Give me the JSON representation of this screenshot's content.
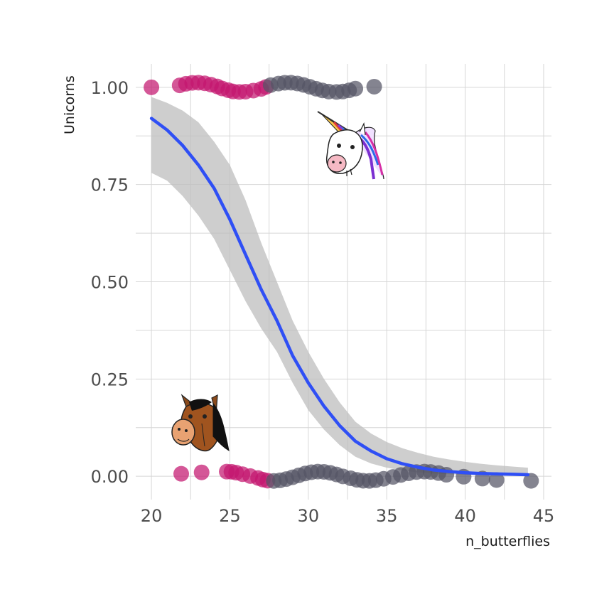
{
  "chart_data": {
    "type": "scatter",
    "title": "",
    "xlabel": "n_butterflies",
    "ylabel": "Unicorns",
    "xlim": [
      19,
      45.5
    ],
    "ylim": [
      -0.06,
      1.06
    ],
    "x_ticks": [
      20,
      25,
      30,
      35,
      40,
      45
    ],
    "x_tick_labels": [
      "20",
      "25",
      "30",
      "35",
      "40",
      "45"
    ],
    "y_ticks": [
      0,
      0.25,
      0.5,
      0.75,
      1
    ],
    "y_tick_labels": [
      "0.00",
      "0.25",
      "0.50",
      "0.75",
      "1.00"
    ],
    "grid": true,
    "legend": "none",
    "colors": {
      "under_27_5": "#c4166f",
      "over_27_5": "#545465",
      "fit_line": "#2f4ff5",
      "confidence_band": "#bdbdbd",
      "grid": "#d6d6d6"
    },
    "series": [
      {
        "values": [
          {
            "x": 20.0,
            "y": 1
          },
          {
            "x": 21.8,
            "y": 1
          },
          {
            "x": 22.2,
            "y": 1
          },
          {
            "x": 22.6,
            "y": 1
          },
          {
            "x": 23.0,
            "y": 1
          },
          {
            "x": 23.4,
            "y": 1
          },
          {
            "x": 23.8,
            "y": 1
          },
          {
            "x": 24.2,
            "y": 1
          },
          {
            "x": 24.5,
            "y": 1
          },
          {
            "x": 24.9,
            "y": 1
          },
          {
            "x": 25.2,
            "y": 1
          },
          {
            "x": 25.6,
            "y": 1
          },
          {
            "x": 26.0,
            "y": 1
          },
          {
            "x": 26.5,
            "y": 1
          },
          {
            "x": 27.0,
            "y": 1
          },
          {
            "x": 27.3,
            "y": 1
          },
          {
            "x": 27.6,
            "y": 1
          },
          {
            "x": 28.1,
            "y": 1
          },
          {
            "x": 28.5,
            "y": 1
          },
          {
            "x": 28.9,
            "y": 1
          },
          {
            "x": 29.3,
            "y": 1
          },
          {
            "x": 29.7,
            "y": 1
          },
          {
            "x": 30.1,
            "y": 1
          },
          {
            "x": 30.5,
            "y": 1
          },
          {
            "x": 30.9,
            "y": 1
          },
          {
            "x": 31.3,
            "y": 1
          },
          {
            "x": 31.8,
            "y": 1
          },
          {
            "x": 32.2,
            "y": 1
          },
          {
            "x": 32.6,
            "y": 1
          },
          {
            "x": 33.0,
            "y": 1
          },
          {
            "x": 34.2,
            "y": 1
          },
          {
            "x": 21.9,
            "y": 0
          },
          {
            "x": 23.2,
            "y": 0
          },
          {
            "x": 24.8,
            "y": 0
          },
          {
            "x": 25.1,
            "y": 0
          },
          {
            "x": 25.4,
            "y": 0
          },
          {
            "x": 25.8,
            "y": 0
          },
          {
            "x": 26.3,
            "y": 0
          },
          {
            "x": 26.8,
            "y": 0
          },
          {
            "x": 27.1,
            "y": 0
          },
          {
            "x": 27.4,
            "y": 0
          },
          {
            "x": 27.8,
            "y": 0
          },
          {
            "x": 28.2,
            "y": 0
          },
          {
            "x": 28.6,
            "y": 0
          },
          {
            "x": 29.0,
            "y": 0
          },
          {
            "x": 29.4,
            "y": 0
          },
          {
            "x": 29.8,
            "y": 0
          },
          {
            "x": 30.2,
            "y": 0
          },
          {
            "x": 30.6,
            "y": 0
          },
          {
            "x": 31.0,
            "y": 0
          },
          {
            "x": 31.4,
            "y": 0
          },
          {
            "x": 31.8,
            "y": 0
          },
          {
            "x": 32.2,
            "y": 0
          },
          {
            "x": 32.7,
            "y": 0
          },
          {
            "x": 33.1,
            "y": 0
          },
          {
            "x": 33.5,
            "y": 0
          },
          {
            "x": 33.9,
            "y": 0
          },
          {
            "x": 34.3,
            "y": 0
          },
          {
            "x": 34.8,
            "y": 0
          },
          {
            "x": 35.4,
            "y": 0
          },
          {
            "x": 35.9,
            "y": 0
          },
          {
            "x": 36.4,
            "y": 0
          },
          {
            "x": 36.9,
            "y": 0
          },
          {
            "x": 37.4,
            "y": 0
          },
          {
            "x": 37.8,
            "y": 0
          },
          {
            "x": 38.3,
            "y": 0
          },
          {
            "x": 38.8,
            "y": 0
          },
          {
            "x": 39.9,
            "y": 0
          },
          {
            "x": 41.1,
            "y": 0
          },
          {
            "x": 42.0,
            "y": 0
          },
          {
            "x": 44.2,
            "y": 0
          }
        ]
      }
    ],
    "fit": {
      "x": [
        20,
        21,
        22,
        23,
        24,
        25,
        26,
        27,
        28,
        29,
        30,
        31,
        32,
        33,
        34,
        35,
        36,
        37,
        38,
        39,
        40,
        41,
        42,
        43,
        44
      ],
      "y": [
        0.92,
        0.89,
        0.85,
        0.8,
        0.74,
        0.66,
        0.57,
        0.48,
        0.4,
        0.31,
        0.24,
        0.18,
        0.13,
        0.09,
        0.065,
        0.045,
        0.032,
        0.023,
        0.016,
        0.012,
        0.009,
        0.007,
        0.006,
        0.005,
        0.004
      ],
      "lower": [
        0.78,
        0.76,
        0.72,
        0.67,
        0.61,
        0.53,
        0.45,
        0.38,
        0.32,
        0.24,
        0.17,
        0.12,
        0.08,
        0.05,
        0.033,
        0.022,
        0.015,
        0.01,
        0.007,
        0.005,
        0.004,
        0.003,
        0.002,
        0.002,
        0.002
      ],
      "upper": [
        0.975,
        0.96,
        0.94,
        0.91,
        0.86,
        0.8,
        0.71,
        0.6,
        0.5,
        0.4,
        0.32,
        0.25,
        0.19,
        0.14,
        0.11,
        0.088,
        0.072,
        0.06,
        0.05,
        0.043,
        0.037,
        0.032,
        0.028,
        0.025,
        0.022
      ]
    },
    "annotations": [
      {
        "icon": "unicorn-icon",
        "x": 32.2,
        "y": 0.83
      },
      {
        "icon": "horse-icon",
        "x": 23.5,
        "y": 0.14
      }
    ]
  }
}
